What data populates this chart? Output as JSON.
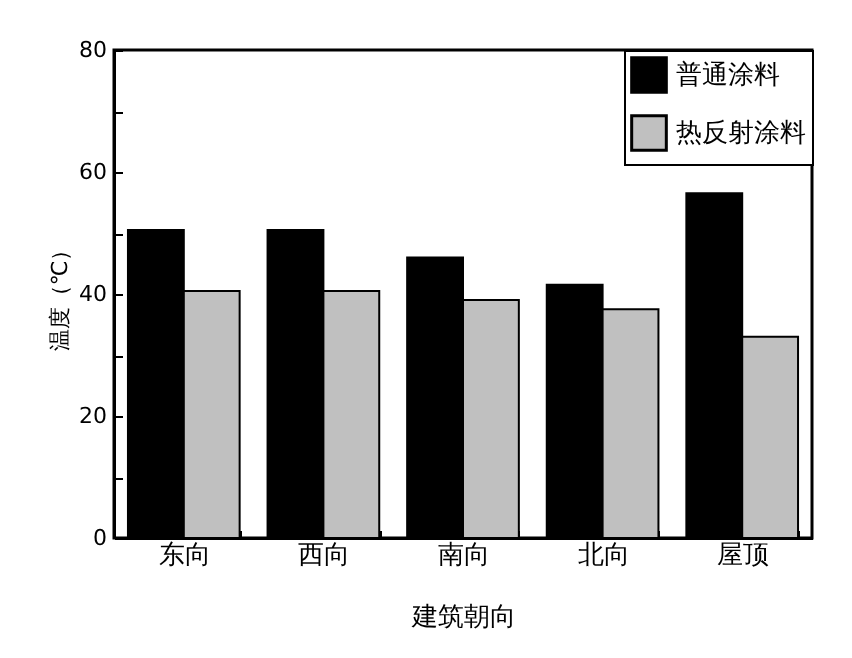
{
  "chart_data": {
    "type": "bar",
    "xlabel": "建筑朝向",
    "ylabel": "温度（℃）",
    "categories": [
      "东向",
      "西向",
      "南向",
      "北向",
      "屋顶"
    ],
    "series": [
      {
        "name": "普通涂料",
        "color": "#000000",
        "values": [
          50.5,
          50.5,
          46,
          41.5,
          56.5
        ]
      },
      {
        "name": "热反射涂料",
        "color": "#c0c0c0",
        "values": [
          40.5,
          40.5,
          39,
          37.5,
          33
        ]
      }
    ],
    "ylim": [
      0,
      80
    ],
    "yticks": [
      0,
      {
        "value": 10,
        "label": null
      },
      20,
      {
        "value": 30,
        "label": null
      },
      40,
      {
        "value": 50,
        "label": null
      },
      60,
      {
        "value": 70,
        "label": null
      },
      80
    ],
    "grid": false,
    "legend": "top right"
  }
}
